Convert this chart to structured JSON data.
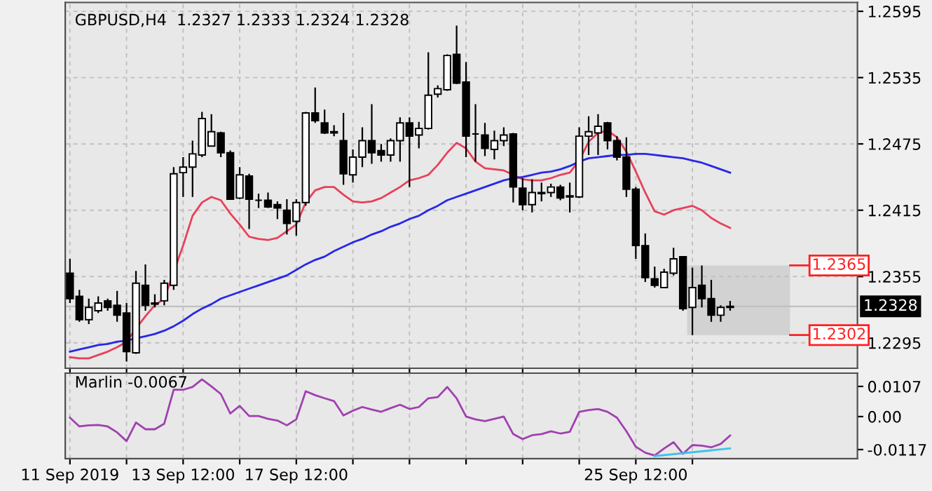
{
  "chart_data": [
    {
      "type": "candlestick",
      "title": "GBPUSD,H4  1.2327 1.2333 1.2324 1.2328",
      "categories": [
        null,
        null,
        null,
        null,
        null,
        null,
        null,
        null,
        null,
        null,
        null,
        null,
        null,
        null,
        null,
        null,
        null,
        null,
        null,
        null,
        null,
        null,
        null,
        null,
        null,
        null,
        null,
        null,
        null,
        null,
        null,
        null,
        null,
        null,
        null,
        null,
        null,
        null,
        null,
        null,
        null,
        null,
        null,
        null,
        null,
        null,
        null,
        null,
        null,
        null,
        null,
        null,
        null,
        null,
        null,
        null,
        null,
        null,
        null,
        null,
        null,
        null,
        null,
        null,
        null,
        null,
        null,
        null,
        null,
        null,
        null
      ],
      "ohlc": [
        [
          1.2358,
          1.2371,
          1.2331,
          1.2335
        ],
        [
          1.2337,
          1.2343,
          1.2314,
          1.2316
        ],
        [
          1.2316,
          1.2335,
          1.2312,
          1.2327
        ],
        [
          1.2324,
          1.2337,
          1.2322,
          1.2331
        ],
        [
          1.2333,
          1.2335,
          1.2324,
          1.2327
        ],
        [
          1.2329,
          1.2342,
          1.2314,
          1.232
        ],
        [
          1.2322,
          1.2331,
          1.2278,
          1.2287
        ],
        [
          1.2286,
          1.236,
          1.2285,
          1.2349
        ],
        [
          1.2347,
          1.2366,
          1.2324,
          1.2329
        ],
        [
          1.2331,
          1.2339,
          1.2327,
          1.233
        ],
        [
          1.2333,
          1.2352,
          1.2329,
          1.2349
        ],
        [
          1.2347,
          1.2454,
          1.2343,
          1.2448
        ],
        [
          1.2449,
          1.2463,
          1.2427,
          1.2454
        ],
        [
          1.2454,
          1.2478,
          1.2427,
          1.2466
        ],
        [
          1.2465,
          1.2504,
          1.2463,
          1.2498
        ],
        [
          1.2473,
          1.2502,
          1.2473,
          1.2486
        ],
        [
          1.2485,
          1.2486,
          1.2463,
          1.2467
        ],
        [
          1.2467,
          1.2469,
          1.2425,
          1.2425
        ],
        [
          1.2426,
          1.2454,
          1.2425,
          1.2447
        ],
        [
          1.2446,
          1.2448,
          1.2398,
          1.2425
        ],
        [
          1.2424,
          1.243,
          1.2417,
          1.2424
        ],
        [
          1.2424,
          1.2431,
          1.2417,
          1.2418
        ],
        [
          1.242,
          1.2423,
          1.2407,
          1.2417
        ],
        [
          1.2415,
          1.2425,
          1.2393,
          1.2403
        ],
        [
          1.2405,
          1.2425,
          1.2392,
          1.2422
        ],
        [
          1.2422,
          1.2504,
          1.2419,
          1.2503
        ],
        [
          1.2503,
          1.2526,
          1.2494,
          1.2496
        ],
        [
          1.2494,
          1.2506,
          1.2484,
          1.2485
        ],
        [
          1.2486,
          1.2492,
          1.2482,
          1.2485
        ],
        [
          1.2478,
          1.2503,
          1.2438,
          1.2448
        ],
        [
          1.2447,
          1.247,
          1.244,
          1.2463
        ],
        [
          1.2463,
          1.249,
          1.2454,
          1.2478
        ],
        [
          1.2478,
          1.2511,
          1.2457,
          1.2467
        ],
        [
          1.2469,
          1.2475,
          1.2459,
          1.2465
        ],
        [
          1.2465,
          1.248,
          1.2459,
          1.2478
        ],
        [
          1.2478,
          1.2499,
          1.2459,
          1.2494
        ],
        [
          1.2494,
          1.2499,
          1.2436,
          1.2482
        ],
        [
          1.2483,
          1.2495,
          1.2471,
          1.2489
        ],
        [
          1.2489,
          1.2558,
          1.2488,
          1.2519
        ],
        [
          1.252,
          1.2528,
          1.2517,
          1.2525
        ],
        [
          1.2524,
          1.2556,
          1.2523,
          1.2555
        ],
        [
          1.2556,
          1.2582,
          1.2529,
          1.253
        ],
        [
          1.2531,
          1.2549,
          1.2463,
          1.2482
        ],
        [
          1.2484,
          1.2511,
          1.2459,
          1.2484
        ],
        [
          1.2483,
          1.2494,
          1.2464,
          1.2471
        ],
        [
          1.247,
          1.2487,
          1.2461,
          1.2478
        ],
        [
          1.2478,
          1.249,
          1.2473,
          1.2483
        ],
        [
          1.2484,
          1.2485,
          1.2422,
          1.2436
        ],
        [
          1.2435,
          1.2444,
          1.2415,
          1.242
        ],
        [
          1.242,
          1.2443,
          1.2413,
          1.2431
        ],
        [
          1.243,
          1.244,
          1.2423,
          1.2431
        ],
        [
          1.2431,
          1.2439,
          1.2427,
          1.2436
        ],
        [
          1.2436,
          1.2438,
          1.2424,
          1.2426
        ],
        [
          1.2427,
          1.244,
          1.2413,
          1.2428
        ],
        [
          1.2427,
          1.249,
          1.2426,
          1.2482
        ],
        [
          1.2482,
          1.25,
          1.2465,
          1.2486
        ],
        [
          1.2485,
          1.2502,
          1.2465,
          1.2491
        ],
        [
          1.2494,
          1.2495,
          1.247,
          1.2478
        ],
        [
          1.2478,
          1.2482,
          1.246,
          1.2463
        ],
        [
          1.2463,
          1.2481,
          1.2427,
          1.2434
        ],
        [
          1.2434,
          1.2436,
          1.2371,
          1.2383
        ],
        [
          1.2383,
          1.2394,
          1.235,
          1.2354
        ],
        [
          1.2353,
          1.2364,
          1.2345,
          1.2347
        ],
        [
          1.2345,
          1.2362,
          1.2345,
          1.2359
        ],
        [
          1.2358,
          1.2381,
          1.2356,
          1.2371
        ],
        [
          1.2373,
          1.2373,
          1.2324,
          1.2326
        ],
        [
          1.2327,
          1.2363,
          1.2302,
          1.2345
        ],
        [
          1.2347,
          1.2365,
          1.2327,
          1.2335
        ],
        [
          1.2335,
          1.2352,
          1.2314,
          1.232
        ],
        [
          1.232,
          1.2329,
          1.2314,
          1.2327
        ],
        [
          1.2327,
          1.2333,
          1.2324,
          1.2328
        ]
      ],
      "series": [
        {
          "type": "line",
          "color": "#e8405a",
          "values": [
            1.2282,
            1.2281,
            1.2281,
            1.2284,
            1.2287,
            1.2291,
            1.2296,
            1.2308,
            1.2319,
            1.2329,
            1.2335,
            null,
            1.2383,
            1.241,
            1.2422,
            1.2427,
            1.2424,
            1.2412,
            1.2402,
            1.2391,
            1.2389,
            1.2388,
            1.239,
            1.2396,
            1.2402,
            1.2422,
            1.2433,
            1.2436,
            1.2436,
            1.2429,
            1.2423,
            1.2422,
            1.2423,
            1.2426,
            1.2431,
            1.2436,
            1.2442,
            1.2444,
            1.2447,
            1.2456,
            1.2467,
            1.2476,
            1.2471,
            1.2459,
            1.2453,
            1.2452,
            1.2451,
            1.2447,
            1.2443,
            1.2442,
            1.2442,
            1.2444,
            1.2447,
            1.2449,
            1.246,
            1.2477,
            1.2485,
            1.2487,
            1.2481,
            1.2468,
            1.245,
            1.2431,
            1.2414,
            1.2411,
            1.2415,
            1.2417,
            1.2419,
            1.2415,
            1.2408,
            1.2403,
            1.2399
          ]
        },
        {
          "type": "line",
          "color": "#2828e8",
          "values": [
            1.2287,
            1.2289,
            1.2291,
            1.2293,
            1.2294,
            1.2296,
            1.2297,
            1.2299,
            1.2301,
            1.2303,
            1.2306,
            1.231,
            1.2315,
            1.2321,
            1.2326,
            1.233,
            1.2335,
            1.2338,
            1.2341,
            1.2344,
            1.2347,
            1.235,
            1.2353,
            1.2356,
            1.2361,
            1.2366,
            1.237,
            1.2373,
            1.2378,
            1.2382,
            1.2386,
            1.2389,
            1.2393,
            1.2396,
            1.24,
            1.2403,
            1.2407,
            1.241,
            1.2415,
            1.2419,
            1.2424,
            1.2427,
            1.243,
            1.2433,
            1.2436,
            1.2439,
            1.2442,
            1.2444,
            1.2445,
            1.2447,
            1.2449,
            1.245,
            1.2452,
            1.2455,
            1.2459,
            1.2462,
            1.2463,
            1.2464,
            1.2465,
            1.2465,
            1.2466,
            1.2466,
            1.2465,
            1.2464,
            1.2463,
            1.2462,
            1.246,
            1.2458,
            1.2455,
            1.2452,
            1.2449
          ]
        }
      ],
      "ylim": [
        1.2272,
        1.2603
      ],
      "yticks": [
        1.2295,
        1.2355,
        1.2415,
        1.2475,
        1.2535,
        1.2595
      ],
      "grid": true,
      "tick_labels": "y",
      "ref_lines": [
        {
          "axis": "y",
          "value": 1.2365,
          "label": "1.2365",
          "color": "#ff2020"
        },
        {
          "axis": "y",
          "value": 1.2302,
          "label": "1.2302",
          "color": "#ff2020"
        },
        {
          "axis": "y",
          "value": 1.2328,
          "label": "1.2328",
          "color": "#c0c0c0"
        }
      ],
      "bands": [
        {
          "axis": "y",
          "from": 1.2302,
          "to": 1.2365,
          "color": "#d2d2d2"
        }
      ]
    },
    {
      "type": "line",
      "title": "Marlin -0.0067",
      "categories": [
        "11 Sep 2019",
        null,
        null,
        null,
        null,
        null,
        null,
        null,
        null,
        null,
        null,
        null,
        "13 Sep 12:00",
        null,
        null,
        null,
        null,
        null,
        null,
        null,
        null,
        null,
        null,
        null,
        "17 Sep 12:00",
        null,
        null,
        null,
        null,
        null,
        null,
        null,
        null,
        null,
        null,
        null,
        null,
        null,
        null,
        null,
        null,
        null,
        null,
        null,
        null,
        null,
        null,
        null,
        null,
        null,
        null,
        null,
        null,
        null,
        null,
        null,
        null,
        null,
        null,
        null,
        "25 Sep 12:00",
        null,
        null,
        null,
        null,
        null,
        null,
        null,
        null,
        null,
        null
      ],
      "series": [
        {
          "color": "#a040b0",
          "values": [
            -0.0004,
            -0.0035,
            -0.0031,
            -0.003,
            -0.0035,
            -0.0056,
            -0.0087,
            -0.0021,
            -0.0045,
            -0.0045,
            -0.0025,
            0.0095,
            0.0095,
            0.0105,
            0.0132,
            0.0107,
            0.008,
            0.0011,
            0.0038,
            0.0002,
            0.0002,
            -0.0008,
            -0.0014,
            -0.0031,
            -0.001,
            0.009,
            0.0076,
            0.0065,
            0.0055,
            0.0004,
            0.0021,
            0.0034,
            0.0025,
            0.0017,
            0.003,
            0.0042,
            0.0027,
            0.0034,
            0.0065,
            0.0069,
            0.0105,
            0.0065,
            0.0,
            -0.001,
            -0.0016,
            -0.0008,
            0.0,
            -0.0062,
            -0.008,
            -0.0066,
            -0.0062,
            -0.0052,
            -0.006,
            -0.0054,
            0.0017,
            0.0023,
            0.0027,
            0.0017,
            -0.0004,
            -0.0052,
            -0.0107,
            -0.0128,
            -0.0138,
            -0.0113,
            -0.0091,
            -0.0132,
            -0.0101,
            -0.0103,
            -0.0109,
            -0.0097,
            -0.0067
          ]
        },
        {
          "color": "#40c0ec",
          "values": [
            null,
            null,
            null,
            null,
            null,
            null,
            null,
            null,
            null,
            null,
            null,
            null,
            null,
            null,
            null,
            null,
            null,
            null,
            null,
            null,
            null,
            null,
            null,
            null,
            null,
            null,
            null,
            null,
            null,
            null,
            null,
            null,
            null,
            null,
            null,
            null,
            null,
            null,
            null,
            null,
            null,
            null,
            null,
            null,
            null,
            null,
            null,
            null,
            null,
            null,
            null,
            null,
            null,
            null,
            null,
            null,
            null,
            null,
            null,
            null,
            null,
            null,
            -0.014,
            null,
            null,
            null,
            null,
            null,
            null,
            null,
            -0.0113
          ]
        }
      ],
      "ylim": [
        -0.0149,
        0.0154
      ],
      "yticks": [
        0.0107,
        {
          "value": 0,
          "label": "0.00"
        },
        -0.0117
      ],
      "grid": "x"
    }
  ]
}
